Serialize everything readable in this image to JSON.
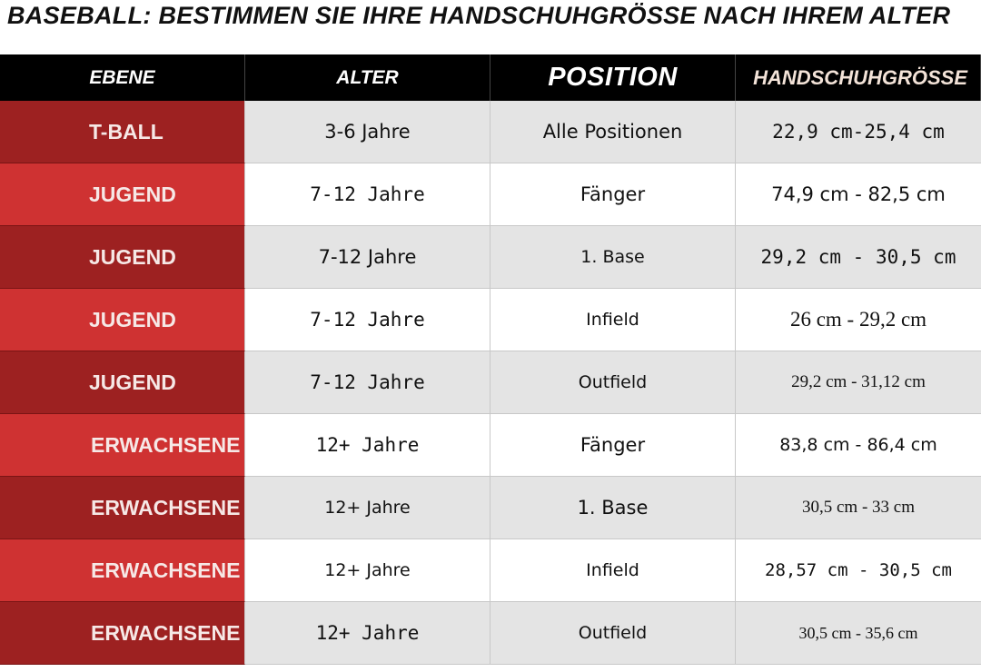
{
  "title": "BASEBALL: BESTIMMEN SIE IHRE HANDSCHUHGRÖSSE NACH IHREM ALTER",
  "colors": {
    "header_bg": "#000000",
    "level_dark": "#9d2121",
    "level_light": "#cf3232",
    "row_gray": "#e4e4e4",
    "row_white": "#ffffff"
  },
  "table": {
    "headers": {
      "level": "EBENE",
      "age": "ALTER",
      "position": "POSITION",
      "size": "HANDSCHUHGRÖSSE"
    },
    "rows": [
      {
        "level": "T-BALL",
        "age": "3-6 Jahre",
        "position": "Alle Positionen",
        "size": "22,9 cm-25,4 cm"
      },
      {
        "level": "JUGEND",
        "age": "7-12 Jahre",
        "position": "Fänger",
        "size": "74,9 cm - 82,5 cm"
      },
      {
        "level": "JUGEND",
        "age": "7-12 Jahre",
        "position": "1. Base",
        "size": "29,2 cm - 30,5 cm"
      },
      {
        "level": "JUGEND",
        "age": "7-12 Jahre",
        "position": "Infield",
        "size": "26 cm - 29,2 cm"
      },
      {
        "level": "JUGEND",
        "age": "7-12 Jahre",
        "position": "Outfield",
        "size": "29,2 cm - 31,12 cm"
      },
      {
        "level": "ERWACHSENE",
        "age": "12+ Jahre",
        "position": "Fänger",
        "size": "83,8 cm - 86,4 cm"
      },
      {
        "level": "ERWACHSENE",
        "age": "12+ Jahre",
        "position": "1. Base",
        "size": "30,5 cm - 33 cm"
      },
      {
        "level": "ERWACHSENE",
        "age": "12+ Jahre",
        "position": "Infield",
        "size": "28,57 cm - 30,5 cm"
      },
      {
        "level": "ERWACHSENE",
        "age": "12+ Jahre",
        "position": "Outfield",
        "size": "30,5 cm - 35,6 cm"
      }
    ]
  }
}
